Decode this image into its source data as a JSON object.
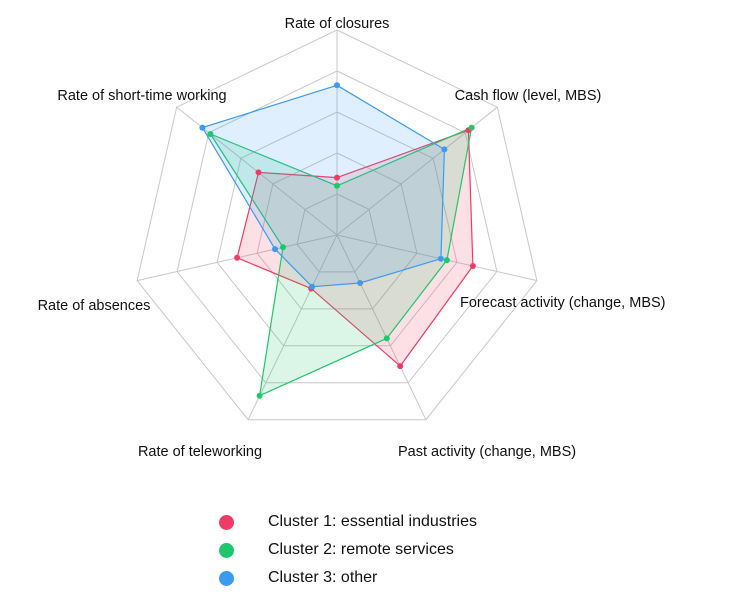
{
  "chart_data": {
    "type": "radar",
    "axes": [
      "Rate of closures",
      "Cash flow (level, MBS)",
      "Forecast activity (change, MBS)",
      "Past activity (change, MBS)",
      "Rate of teleworking",
      "Rate of absences",
      "Rate of short-time working"
    ],
    "rlim": [
      0,
      1
    ],
    "grid_levels": [
      0.2,
      0.4,
      0.6,
      0.8,
      1.0
    ],
    "series": [
      {
        "name": "Cluster 1: essential industries",
        "color": "#f03c64",
        "values": [
          0.28,
          0.82,
          0.68,
          0.71,
          0.29,
          0.5,
          0.49
        ]
      },
      {
        "name": "Cluster 2: remote services",
        "color": "#1ec66c",
        "values": [
          0.24,
          0.84,
          0.55,
          0.56,
          0.87,
          0.27,
          0.79
        ]
      },
      {
        "name": "Cluster 3: other",
        "color": "#3a9bf0",
        "values": [
          0.73,
          0.67,
          0.52,
          0.26,
          0.28,
          0.31,
          0.84
        ]
      }
    ],
    "grid": true,
    "legend_position": "bottom"
  }
}
